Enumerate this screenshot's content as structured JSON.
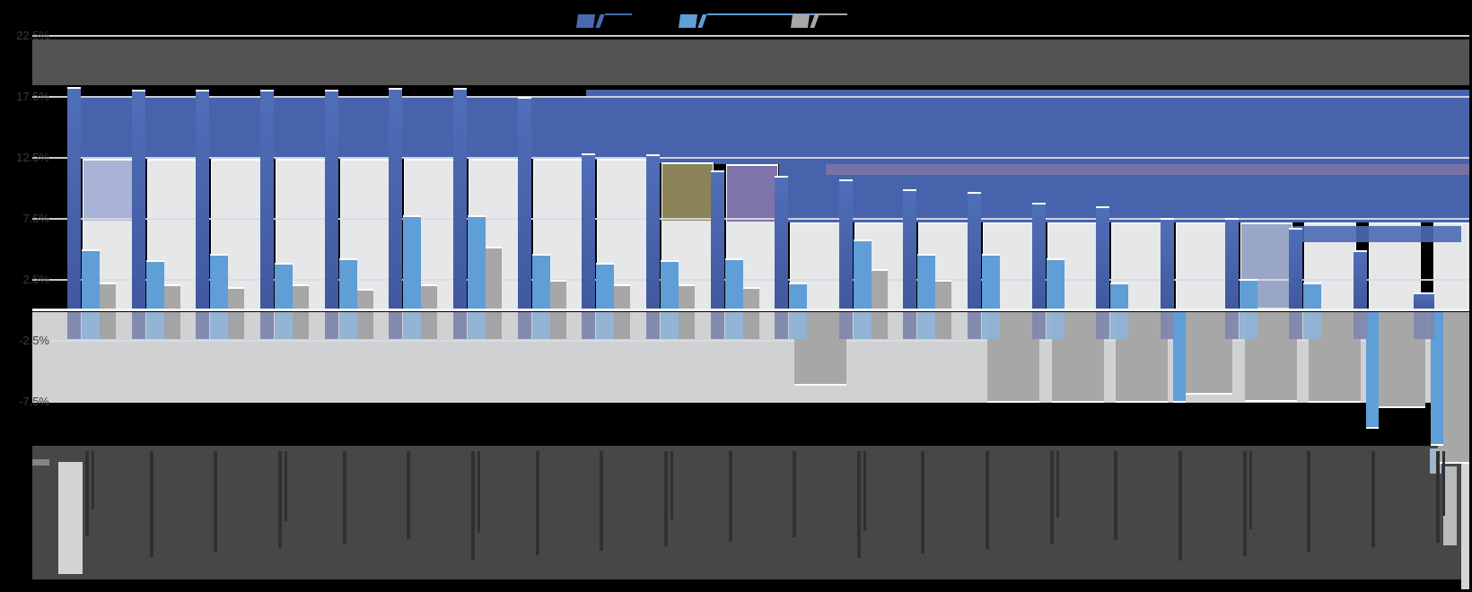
{
  "window": {
    "background": "#000000",
    "label_panel_color": "#474747"
  },
  "legend": {
    "items": [
      {
        "label": "",
        "color": "#4a69b3",
        "line_len": 30
      },
      {
        "label": "",
        "color": "#5f9ed6",
        "line_len": 129
      },
      {
        "label": "",
        "color": "#a7a7a7",
        "line_len": 36
      }
    ]
  },
  "y_axis": {
    "unit": "%",
    "tick_labels": [
      "22.5%",
      "17.5%",
      "12.5%",
      "7.5%",
      "2.5%",
      "-2.5%",
      "-7.5%"
    ],
    "tick_values": [
      22.5,
      17.5,
      12.5,
      7.5,
      2.5,
      -2.5,
      -7.5
    ],
    "gridlines": true
  },
  "chart_data": {
    "type": "bar",
    "title": "",
    "xlabel": "",
    "ylabel": "",
    "ylim": [
      -13,
      22.5
    ],
    "legend_position": "top-center",
    "categories": [
      "",
      "",
      "",
      "",
      "",
      "",
      "",
      "",
      "",
      "",
      "",
      "",
      "",
      "",
      "",
      "",
      "",
      "",
      "",
      "",
      "",
      ""
    ],
    "series": [
      {
        "name": "blue",
        "color": "#4a69b3",
        "values": [
          18.3,
          18.1,
          18.1,
          18.1,
          18.1,
          18.2,
          18.2,
          17.5,
          12.9,
          12.8,
          11.5,
          11.0,
          10.7,
          9.9,
          9.7,
          8.8,
          8.5,
          7.6,
          7.6,
          6.8,
          4.9,
          1.5
        ]
      },
      {
        "name": "light_blue",
        "color": "#5f9ed6",
        "values": [
          5.0,
          4.1,
          4.6,
          3.9,
          4.3,
          7.8,
          7.8,
          4.6,
          3.9,
          4.1,
          4.3,
          2.3,
          5.8,
          4.6,
          4.6,
          4.3,
          2.3,
          -7.6,
          2.6,
          2.3,
          -9.7,
          -11.1
        ]
      },
      {
        "name": "gray",
        "color": "#a7a7a7",
        "values": [
          2.3,
          2.1,
          1.9,
          2.1,
          1.8,
          2.1,
          5.2,
          2.5,
          2.1,
          2.1,
          1.9,
          -6.2,
          3.4,
          2.5,
          -7.6,
          -7.6,
          -7.6,
          -6.9,
          -7.5,
          -7.6,
          -8.0,
          -12.6
        ]
      }
    ],
    "background_columns": {
      "wide_light_bar_top": [
        12.4,
        12.4,
        12.4,
        12.4,
        12.4,
        12.4,
        12.4,
        12.4,
        12.4,
        12.1,
        12.0,
        7.2,
        7.2,
        7.2,
        7.2,
        7.2,
        7.2,
        7.2,
        7.2,
        7.2,
        7.2,
        7.2
      ],
      "blue_band_top": [
        17.4,
        17.4,
        17.4,
        17.4,
        17.4,
        17.4,
        17.4,
        17.4,
        18.1,
        18.1,
        18.1,
        18.1,
        18.1,
        18.1,
        18.1,
        18.1,
        18.1,
        18.1,
        18.1,
        18.1,
        18.1,
        18.1
      ],
      "tints": [
        {
          "index": 0,
          "color": "#a9b3d6",
          "bottom_value": 7.3
        },
        {
          "index": 9,
          "color": "#8a8458",
          "bottom_value": 7.3
        },
        {
          "index": 10,
          "color": "#7e74aa",
          "bottom_value": 7.3
        },
        {
          "index": 18,
          "color": "#9aa6c6",
          "bottom_value": 0.2
        }
      ]
    },
    "blue_bar_width_override": {
      "index": 21,
      "width": 23
    }
  },
  "colors": {
    "bar_blue_top": "#4f6fb8",
    "bar_blue_bottom": "#41589f",
    "bar_light_blue": "#5f9ed6",
    "bar_gray": "#a7a7a7",
    "wide_bar": "#e6e7e9",
    "band_blue": "#4763ab",
    "dark_band": "#535353",
    "reflect_band": "#d0d1d3",
    "purple_stripe": "#7b73a6",
    "right_blue_stripe": "#4a6cb4",
    "gridline": "#d9dbe1",
    "baseline": "#f2f3f5",
    "y_label_text": "#3b3b3b",
    "x_label_mark": "#303030",
    "stub_blue": "#7e88ac",
    "stub_light_blue": "#8fb2d4",
    "stub_gray": "#a0a1a3",
    "first_label_highlight": "#d2d3d5",
    "panel_corner_text": "#8f8f8f"
  }
}
